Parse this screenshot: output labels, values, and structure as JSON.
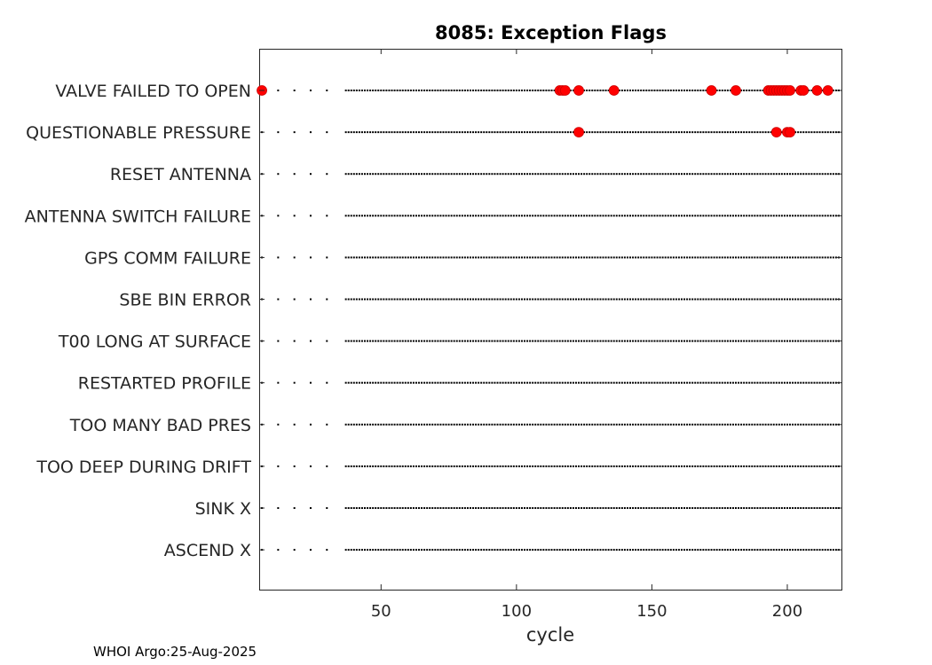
{
  "chart_data": {
    "type": "scatter",
    "title": "8085: Exception Flags",
    "xlabel": "cycle",
    "ylabel": "",
    "xlim": [
      5,
      220
    ],
    "xticks": [
      50,
      100,
      150,
      200
    ],
    "grid": false,
    "categories": [
      "VALVE FAILED TO OPEN",
      "QUESTIONABLE PRESSURE",
      "RESET ANTENNA",
      "ANTENNA SWITCH FAILURE",
      "GPS COMM FAILURE",
      "SBE BIN ERROR",
      "T00 LONG AT SURFACE",
      "RESTARTED PROFILE",
      "TOO MANY BAD PRES",
      "TOO DEEP DURING DRIFT",
      "SINK X",
      "ASCEND X"
    ],
    "baseline_cycles": [
      6,
      12,
      18,
      24,
      30,
      37,
      38,
      39,
      40,
      41,
      42,
      43,
      44,
      45,
      46,
      47,
      48,
      49,
      50,
      51,
      52,
      53,
      54,
      55,
      56,
      57,
      58,
      59,
      60,
      61,
      62,
      63,
      64,
      65,
      66,
      67,
      68,
      69,
      70,
      71,
      72,
      73,
      74,
      75,
      76,
      77,
      78,
      79,
      80,
      81,
      82,
      83,
      84,
      85,
      86,
      87,
      88,
      89,
      90,
      91,
      92,
      93,
      94,
      95,
      96,
      97,
      98,
      99,
      100,
      101,
      102,
      103,
      104,
      105,
      106,
      107,
      108,
      109,
      110,
      111,
      112,
      113,
      114,
      115,
      116,
      117,
      118,
      119,
      120,
      121,
      122,
      123,
      124,
      125,
      126,
      127,
      128,
      129,
      130,
      131,
      132,
      133,
      134,
      135,
      136,
      137,
      138,
      139,
      140,
      141,
      142,
      143,
      144,
      145,
      146,
      147,
      148,
      149,
      150,
      151,
      152,
      153,
      154,
      155,
      156,
      157,
      158,
      159,
      160,
      161,
      162,
      163,
      164,
      165,
      166,
      167,
      168,
      169,
      170,
      171,
      172,
      173,
      174,
      175,
      176,
      177,
      178,
      179,
      180,
      181,
      182,
      183,
      184,
      185,
      186,
      187,
      188,
      189,
      190,
      191,
      192,
      193,
      194,
      195,
      196,
      197,
      198,
      199,
      200,
      201,
      202,
      203,
      204,
      205,
      206,
      207,
      208,
      209,
      210,
      211,
      212,
      213,
      214,
      215,
      216,
      217,
      218,
      219
    ],
    "flagged": [
      {
        "flag": "VALVE FAILED TO OPEN",
        "cycles": [
          6,
          116,
          117,
          118,
          123,
          136,
          172,
          181,
          193,
          194,
          195,
          196,
          197,
          198,
          199,
          200,
          201,
          205,
          206,
          211,
          215
        ]
      },
      {
        "flag": "QUESTIONABLE PRESSURE",
        "cycles": [
          123,
          196,
          200,
          201
        ]
      },
      {
        "flag": "RESET ANTENNA",
        "cycles": []
      },
      {
        "flag": "ANTENNA SWITCH FAILURE",
        "cycles": []
      },
      {
        "flag": "GPS COMM FAILURE",
        "cycles": []
      },
      {
        "flag": "SBE BIN ERROR",
        "cycles": []
      },
      {
        "flag": "T00 LONG AT SURFACE",
        "cycles": []
      },
      {
        "flag": "RESTARTED PROFILE",
        "cycles": []
      },
      {
        "flag": "TOO MANY BAD PRES",
        "cycles": []
      },
      {
        "flag": "TOO DEEP DURING DRIFT",
        "cycles": []
      },
      {
        "flag": "SINK X",
        "cycles": []
      },
      {
        "flag": "ASCEND X",
        "cycles": []
      }
    ],
    "colors": {
      "flagged": "#ff0000",
      "baseline": "#000000"
    }
  },
  "footer": "WHOI Argo:25-Aug-2025"
}
